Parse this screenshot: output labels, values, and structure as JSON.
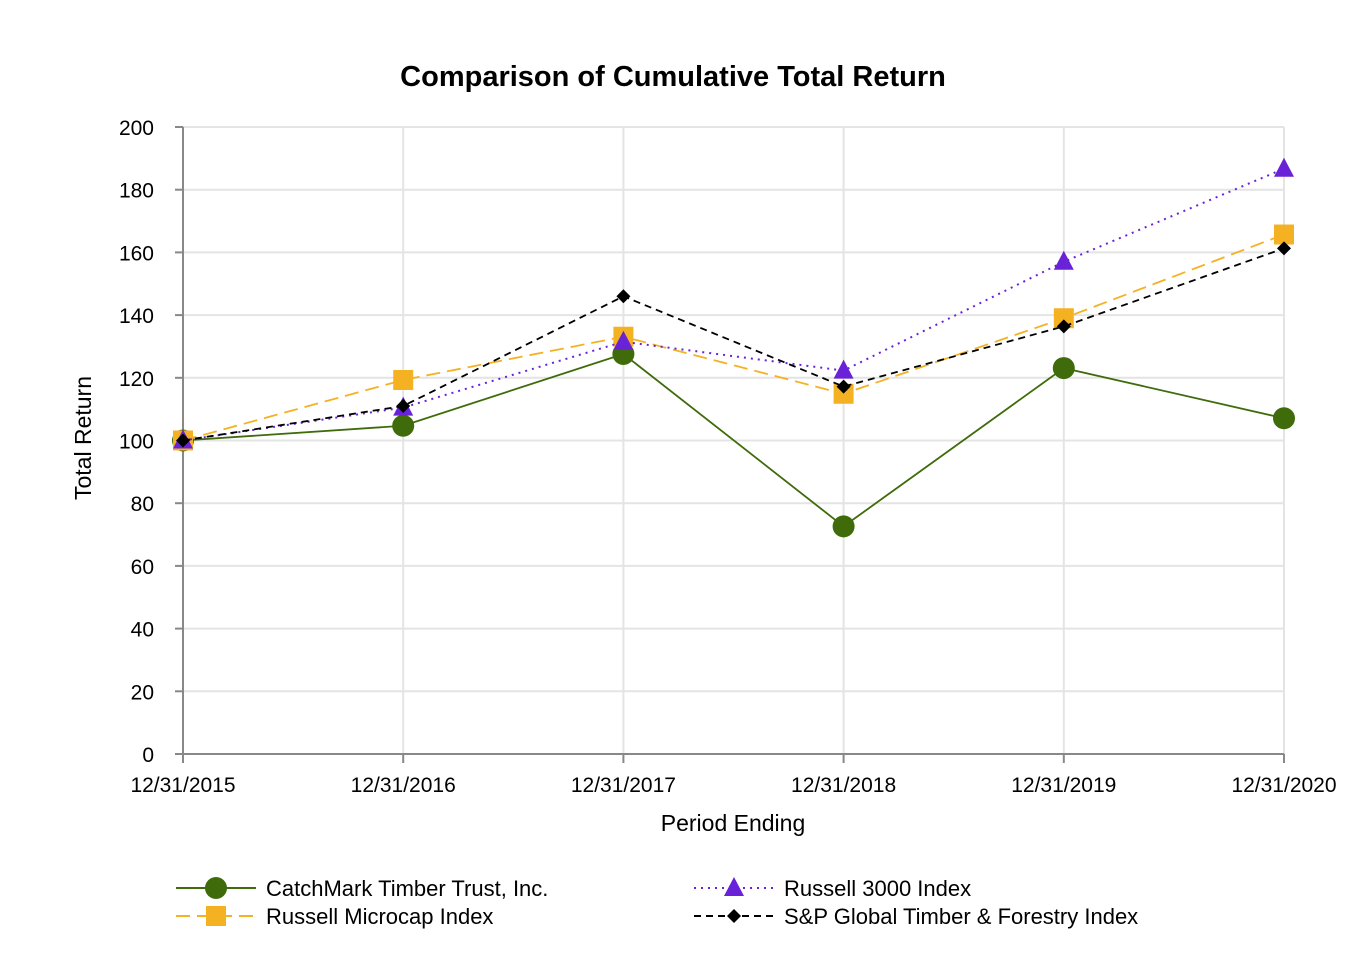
{
  "chart_data": {
    "type": "line",
    "title": "Comparison of Cumulative Total Return",
    "xlabel": "Period Ending",
    "ylabel": "Total Return",
    "ylim": [
      0,
      200
    ],
    "yticks": [
      "0",
      "20",
      "40",
      "60",
      "80",
      "100",
      "120",
      "140",
      "160",
      "180",
      "200"
    ],
    "grid": true,
    "legend_position": "bottom",
    "categories": [
      "12/31/2015",
      "12/31/2016",
      "12/31/2017",
      "12/31/2018",
      "12/31/2019",
      "12/31/2020"
    ],
    "series": [
      {
        "name": "CatchMark Timber Trust, Inc.",
        "values": [
          100.0,
          104.7,
          127.6,
          72.6,
          123.1,
          107.1
        ],
        "color": "#3f6b0a",
        "marker": "circle",
        "dash": "solid"
      },
      {
        "name": "Russell Microcap Index",
        "values": [
          100.0,
          119.3,
          133.1,
          114.9,
          139.0,
          165.7
        ],
        "color": "#f4b223",
        "marker": "square",
        "dash": "dashed"
      },
      {
        "name": "Russell 3000 Index",
        "values": [
          100.0,
          110.5,
          131.5,
          122.3,
          157.0,
          186.7
        ],
        "color": "#6a22d8",
        "marker": "triangle",
        "dash": "dotted"
      },
      {
        "name": "S&P Global Timber & Forestry Index",
        "values": [
          100.0,
          111.0,
          146.0,
          117.2,
          136.4,
          161.3
        ],
        "color": "#000000",
        "marker": "diamond",
        "dash": "short-dashed"
      }
    ]
  }
}
